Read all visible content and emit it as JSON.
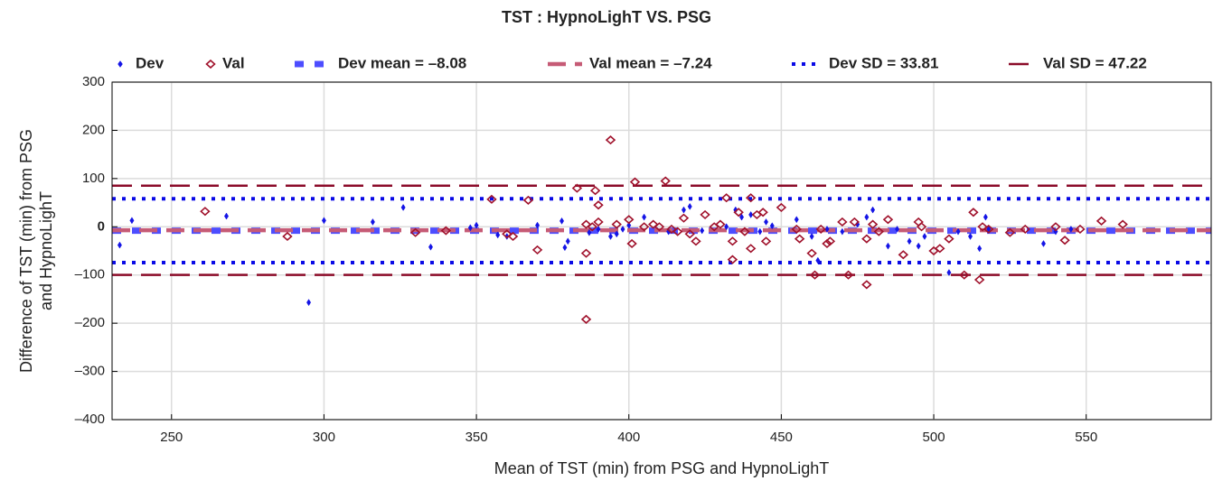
{
  "chart_data": {
    "type": "scatter",
    "title": "TST : HypnoLighT VS. PSG",
    "xlabel": "Mean of TST (min) from PSG and HypnoLighT",
    "ylabel": "Difference of TST (min) from PSG and HypnoLighT",
    "xlim": [
      230.5,
      591
    ],
    "ylim": [
      -400,
      300
    ],
    "xticks": [
      250,
      300,
      350,
      400,
      450,
      500,
      550
    ],
    "yticks": [
      {
        "value": -400,
        "label": "–400"
      },
      {
        "value": -300,
        "label": "–300"
      },
      {
        "value": -200,
        "label": "–200"
      },
      {
        "value": -100,
        "label": "–100"
      },
      0,
      100,
      200,
      300
    ],
    "grid": true,
    "series": [
      {
        "name": "Dev",
        "color": "#1414e6",
        "marker": "filled-diamond",
        "x": [
          233,
          237,
          268,
          295,
          300,
          316,
          326,
          335,
          348,
          350,
          357,
          360,
          370,
          378,
          379,
          380,
          387,
          390,
          394,
          396,
          398,
          400,
          405,
          413,
          418,
          420,
          424,
          432,
          435,
          437,
          440,
          443,
          445,
          447,
          455,
          460,
          462,
          465,
          470,
          475,
          478,
          480,
          485,
          488,
          492,
          495,
          497,
          505,
          508,
          512,
          515,
          517,
          518,
          536,
          540,
          545
        ],
        "values": [
          -38,
          13,
          22,
          -157,
          13,
          10,
          40,
          -42,
          -2,
          3,
          -17,
          -20,
          3,
          12,
          -43,
          -30,
          -12,
          -5,
          -20,
          -15,
          -5,
          3,
          20,
          -10,
          35,
          42,
          -8,
          0,
          35,
          20,
          25,
          -10,
          10,
          2,
          15,
          -20,
          -70,
          -5,
          -10,
          5,
          20,
          35,
          -40,
          -5,
          -30,
          -40,
          -20,
          -95,
          -10,
          -20,
          -45,
          20,
          -5,
          -35,
          -10,
          -5
        ]
      },
      {
        "name": "Val",
        "color": "#a0112b",
        "marker": "hollow-diamond",
        "x": [
          261,
          288,
          330,
          340,
          355,
          360,
          362,
          367,
          370,
          383,
          386,
          386,
          386,
          388,
          389,
          390,
          390,
          394,
          396,
          400,
          401,
          402,
          405,
          408,
          410,
          412,
          414,
          416,
          418,
          420,
          422,
          425,
          428,
          430,
          432,
          434,
          434,
          436,
          438,
          440,
          440,
          442,
          444,
          445,
          450,
          455,
          456,
          460,
          461,
          463,
          465,
          466,
          470,
          472,
          474,
          478,
          478,
          480,
          482,
          485,
          490,
          495,
          496,
          500,
          502,
          505,
          510,
          513,
          515,
          516,
          518,
          525,
          530,
          540,
          543,
          548,
          555,
          562
        ],
        "values": [
          32,
          -20,
          -12,
          -8,
          57,
          -15,
          -20,
          55,
          -48,
          80,
          -55,
          -192,
          5,
          0,
          75,
          45,
          10,
          180,
          5,
          15,
          -35,
          93,
          0,
          5,
          0,
          95,
          -5,
          -10,
          18,
          -15,
          -30,
          25,
          0,
          5,
          60,
          -30,
          -68,
          30,
          -10,
          60,
          -45,
          25,
          30,
          -30,
          40,
          -5,
          -25,
          -55,
          -100,
          -5,
          -35,
          -30,
          10,
          -100,
          10,
          -25,
          -120,
          5,
          -10,
          15,
          -58,
          10,
          0,
          -50,
          -45,
          -25,
          -100,
          30,
          -110,
          0,
          -5,
          -12,
          -5,
          0,
          -28,
          -5,
          12,
          5
        ]
      }
    ],
    "reference_lines": [
      {
        "name": "Dev mean = –8.08",
        "color": "#4d4dff",
        "style": "square-dash",
        "values": [
          -8.08
        ]
      },
      {
        "name": "Val mean =  –7.24",
        "color": "#c65b76",
        "style": "dash",
        "values": [
          -7.24
        ]
      },
      {
        "name": "Dev SD = 33.81",
        "color": "#0a0ae6",
        "style": "dot",
        "values": [
          58.2,
          -74.3
        ]
      },
      {
        "name": "Val SD = 47.22",
        "color": "#8b0a28",
        "style": "long-dash",
        "values": [
          85.3,
          -99.8
        ]
      }
    ]
  }
}
